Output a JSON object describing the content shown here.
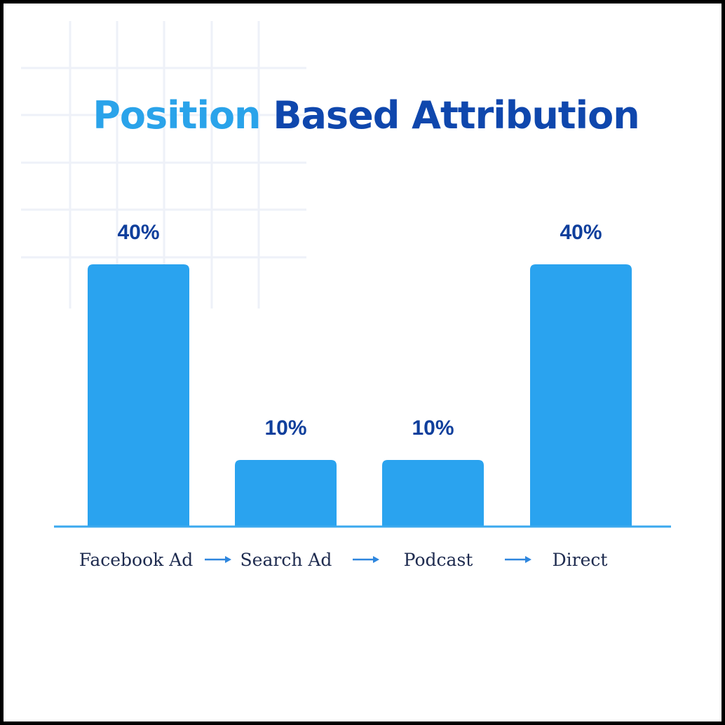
{
  "title": {
    "part1": "Position",
    "part2": "Based Attribution"
  },
  "colors": {
    "bar": "#2aa3ef",
    "axis": "#3aa8ee",
    "value_label": "#0f3f9c",
    "category_label": "#1e2b4f",
    "arrow": "#2e86de",
    "title_light": "#2aa3ea",
    "title_dark": "#0f47ad",
    "grid": "#eef1f8"
  },
  "chart_data": {
    "type": "bar",
    "categories": [
      "Facebook Ad",
      "Search Ad",
      "Podcast",
      "Direct"
    ],
    "values": [
      40,
      10,
      10,
      40
    ],
    "value_labels": [
      "40%",
      "10%",
      "10%",
      "40%"
    ],
    "ylim": [
      0,
      40
    ],
    "grid": false,
    "legend": false,
    "category_arrows": true
  }
}
